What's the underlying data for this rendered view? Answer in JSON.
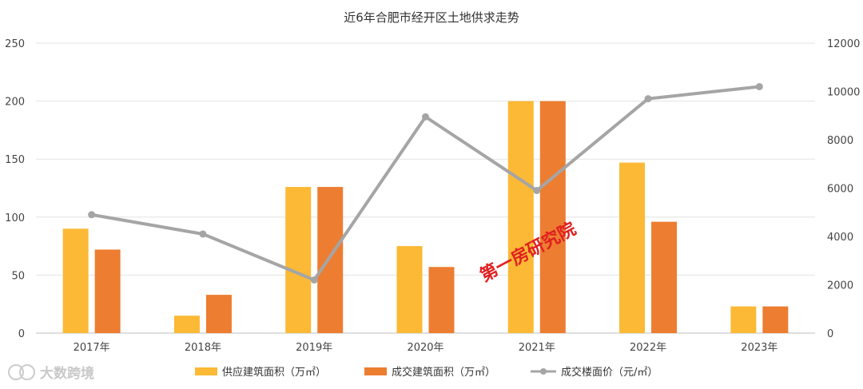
{
  "chart_data": {
    "type": "bar",
    "title": "近6年合肥市经开区土地供求走势",
    "categories": [
      "2017年",
      "2018年",
      "2019年",
      "2020年",
      "2021年",
      "2022年",
      "2023年"
    ],
    "series": [
      {
        "name": "供应建筑面积（万㎡）",
        "type": "bar",
        "axis": "left",
        "color": "#FBB935",
        "values": [
          90,
          15,
          126,
          75,
          200,
          147,
          23
        ]
      },
      {
        "name": "成交建筑面积（万㎡）",
        "type": "bar",
        "axis": "left",
        "color": "#ED7D31",
        "values": [
          72,
          33,
          126,
          57,
          200,
          96,
          23
        ]
      },
      {
        "name": "成交楼面价（元/㎡）",
        "type": "line",
        "axis": "right",
        "color": "#A5A5A5",
        "values": [
          4900,
          4100,
          2200,
          8950,
          5900,
          9700,
          10200
        ]
      }
    ],
    "ylim": [
      0,
      250
    ],
    "yticks": [
      0,
      50,
      100,
      150,
      200,
      250
    ],
    "y2lim": [
      0,
      12000
    ],
    "y2ticks": [
      0,
      2000,
      4000,
      6000,
      8000,
      10000,
      12000
    ],
    "grid": true,
    "legend_position": "bottom"
  },
  "watermark": "第一房研究院",
  "brand": "大数跨境"
}
